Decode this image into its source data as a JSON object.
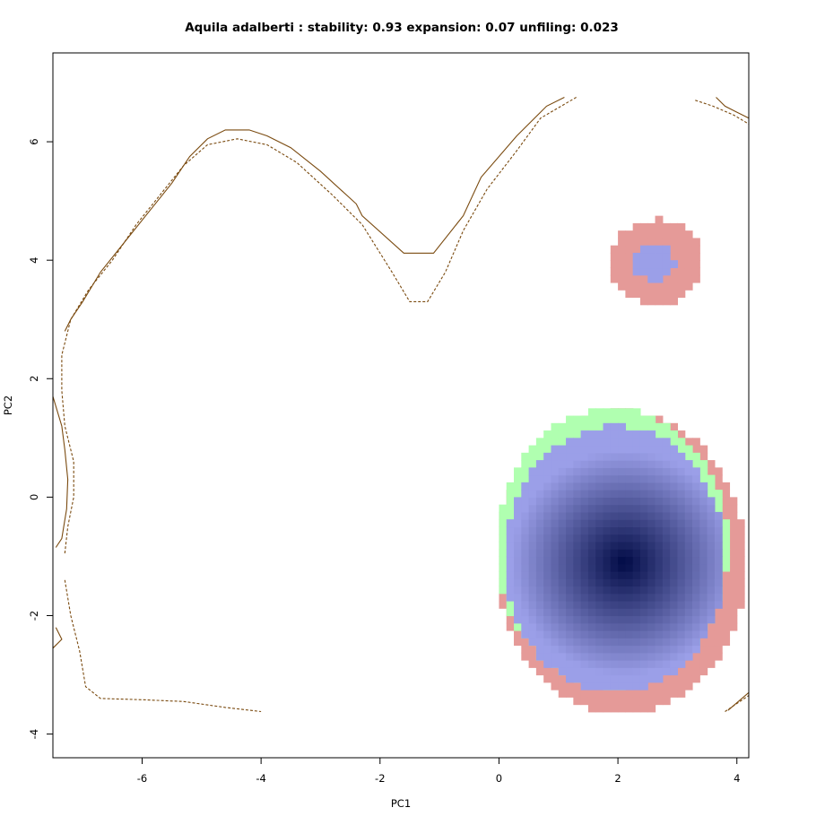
{
  "chart_data": {
    "type": "heatmap",
    "title": "Aquila adalberti : stability: 0.93 expansion: 0.07 unfiling: 0.023",
    "xlabel": "PC1",
    "ylabel": "PC2",
    "xlim": [
      -7.5,
      4.2
    ],
    "ylim": [
      -4.4,
      7.5
    ],
    "x_ticks": [
      -6,
      -4,
      -2,
      0,
      2,
      4
    ],
    "y_ticks": [
      -4,
      -2,
      0,
      2,
      4,
      6
    ],
    "grid": false,
    "colors": {
      "stability": "#9b9fe8",
      "stability_core": "#000a45",
      "expansion": "#e59a98",
      "unfilling": "#b0ffb0",
      "contour": "#7a4a0f"
    },
    "regions": [
      {
        "category": "expansion",
        "shape": "ellipse",
        "center": [
          2.05,
          -1.1
        ],
        "radii": [
          2.1,
          2.55
        ]
      },
      {
        "category": "unfilling",
        "shape": "ellipse",
        "center": [
          1.9,
          -0.85
        ],
        "radii": [
          1.95,
          2.35
        ]
      },
      {
        "category": "stability",
        "shape": "ellipse",
        "center": [
          1.95,
          -1.05
        ],
        "radii": [
          1.85,
          2.25
        ],
        "core": [
          2.1,
          -1.1
        ]
      },
      {
        "category": "expansion",
        "shape": "ellipse",
        "center": [
          2.65,
          3.97
        ],
        "radii": [
          0.78,
          0.72
        ]
      },
      {
        "category": "stability",
        "shape": "ellipse",
        "center": [
          2.6,
          3.97
        ],
        "radii": [
          0.34,
          0.3
        ]
      }
    ],
    "contours": [
      {
        "style": "solid",
        "points": [
          [
            -7.3,
            2.8
          ],
          [
            -7.2,
            3.0
          ],
          [
            -7.0,
            3.3
          ],
          [
            -6.7,
            3.8
          ],
          [
            -6.3,
            4.3
          ],
          [
            -5.9,
            4.8
          ],
          [
            -5.5,
            5.3
          ],
          [
            -5.2,
            5.75
          ],
          [
            -4.9,
            6.05
          ],
          [
            -4.6,
            6.2
          ],
          [
            -4.2,
            6.2
          ],
          [
            -3.9,
            6.1
          ],
          [
            -3.5,
            5.9
          ],
          [
            -3.0,
            5.5
          ],
          [
            -2.4,
            4.95
          ],
          [
            -2.3,
            4.75
          ],
          [
            -1.6,
            4.12
          ],
          [
            -1.1,
            4.12
          ],
          [
            -0.6,
            4.75
          ],
          [
            -0.3,
            5.4
          ],
          [
            0.3,
            6.1
          ],
          [
            0.8,
            6.6
          ],
          [
            1.1,
            6.75
          ]
        ]
      },
      {
        "style": "solid",
        "points": [
          [
            -7.5,
            1.7
          ],
          [
            -7.35,
            1.2
          ],
          [
            -7.3,
            0.8
          ],
          [
            -7.25,
            0.3
          ],
          [
            -7.27,
            -0.2
          ],
          [
            -7.35,
            -0.7
          ],
          [
            -7.45,
            -0.85
          ]
        ]
      },
      {
        "style": "solid",
        "points": [
          [
            -7.45,
            -2.2
          ],
          [
            -7.35,
            -2.4
          ],
          [
            -7.5,
            -2.55
          ]
        ]
      },
      {
        "style": "solid",
        "points": [
          [
            3.65,
            6.75
          ],
          [
            3.8,
            6.6
          ],
          [
            4.0,
            6.5
          ],
          [
            4.2,
            6.4
          ]
        ]
      },
      {
        "style": "solid",
        "points": [
          [
            3.85,
            -3.6
          ],
          [
            4.2,
            -3.3
          ]
        ]
      },
      {
        "style": "dashed",
        "points": [
          [
            -7.3,
            -0.95
          ],
          [
            -7.25,
            -0.5
          ],
          [
            -7.15,
            0.0
          ],
          [
            -7.15,
            0.6
          ],
          [
            -7.3,
            1.2
          ],
          [
            -7.35,
            1.8
          ],
          [
            -7.35,
            2.4
          ],
          [
            -7.2,
            3.0
          ],
          [
            -6.9,
            3.5
          ],
          [
            -6.5,
            4.0
          ],
          [
            -6.1,
            4.6
          ],
          [
            -5.7,
            5.1
          ],
          [
            -5.3,
            5.6
          ],
          [
            -4.9,
            5.95
          ],
          [
            -4.4,
            6.05
          ],
          [
            -3.9,
            5.95
          ],
          [
            -3.4,
            5.65
          ],
          [
            -2.8,
            5.1
          ],
          [
            -2.3,
            4.6
          ],
          [
            -1.8,
            3.8
          ],
          [
            -1.5,
            3.3
          ],
          [
            -1.2,
            3.3
          ],
          [
            -0.9,
            3.8
          ],
          [
            -0.6,
            4.5
          ],
          [
            -0.2,
            5.2
          ],
          [
            0.3,
            5.85
          ],
          [
            0.7,
            6.4
          ],
          [
            1.3,
            6.75
          ]
        ]
      },
      {
        "style": "dashed",
        "points": [
          [
            -7.3,
            -1.4
          ],
          [
            -7.2,
            -2.0
          ],
          [
            -7.05,
            -2.6
          ],
          [
            -6.95,
            -3.2
          ],
          [
            -6.7,
            -3.4
          ],
          [
            -6.0,
            -3.42
          ],
          [
            -5.3,
            -3.45
          ],
          [
            -4.6,
            -3.55
          ],
          [
            -4.0,
            -3.62
          ]
        ]
      },
      {
        "style": "dashed",
        "points": [
          [
            3.3,
            6.7
          ],
          [
            3.6,
            6.6
          ],
          [
            3.95,
            6.45
          ],
          [
            4.2,
            6.3
          ]
        ]
      },
      {
        "style": "dashed",
        "points": [
          [
            3.8,
            -3.62
          ],
          [
            4.2,
            -3.35
          ]
        ]
      }
    ]
  }
}
